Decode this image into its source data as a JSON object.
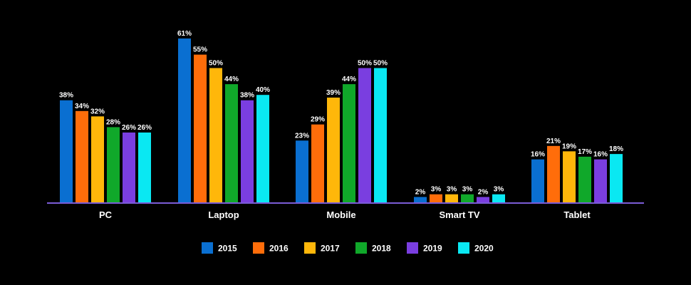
{
  "chart_data": {
    "type": "bar",
    "title": "",
    "xlabel": "",
    "ylabel": "",
    "ylim": [
      0,
      62
    ],
    "grid": false,
    "legend_position": "bottom-center",
    "categories": [
      "PC",
      "Laptop",
      "Mobile",
      "Smart TV",
      "Tablet"
    ],
    "series": [
      {
        "name": "2015",
        "color": "#0a6fd1",
        "values": [
          38,
          61,
          23,
          2,
          16
        ],
        "labels": [
          "38%",
          "61%",
          "23%",
          "2%",
          "16%"
        ]
      },
      {
        "name": "2016",
        "color": "#ff6d0a",
        "values": [
          34,
          55,
          29,
          3,
          21
        ],
        "labels": [
          "34%",
          "55%",
          "29%",
          "3%",
          "21%"
        ]
      },
      {
        "name": "2017",
        "color": "#ffb70a",
        "values": [
          32,
          50,
          39,
          3,
          19
        ],
        "labels": [
          "32%",
          "50%",
          "39%",
          "3%",
          "19%"
        ]
      },
      {
        "name": "2018",
        "color": "#10a82a",
        "values": [
          28,
          44,
          44,
          3,
          17
        ],
        "labels": [
          "28%",
          "44%",
          "44%",
          "3%",
          "17%"
        ]
      },
      {
        "name": "2019",
        "color": "#7a3ee0",
        "values": [
          26,
          38,
          50,
          2,
          16
        ],
        "labels": [
          "26%",
          "38%",
          "50%",
          "2%",
          "16%"
        ]
      },
      {
        "name": "2020",
        "color": "#0ae8f2",
        "values": [
          26,
          40,
          50,
          3,
          18
        ],
        "labels": [
          "26%",
          "40%",
          "50%",
          "3%",
          "18%"
        ]
      }
    ],
    "axis_color": "#7a5cd6"
  }
}
